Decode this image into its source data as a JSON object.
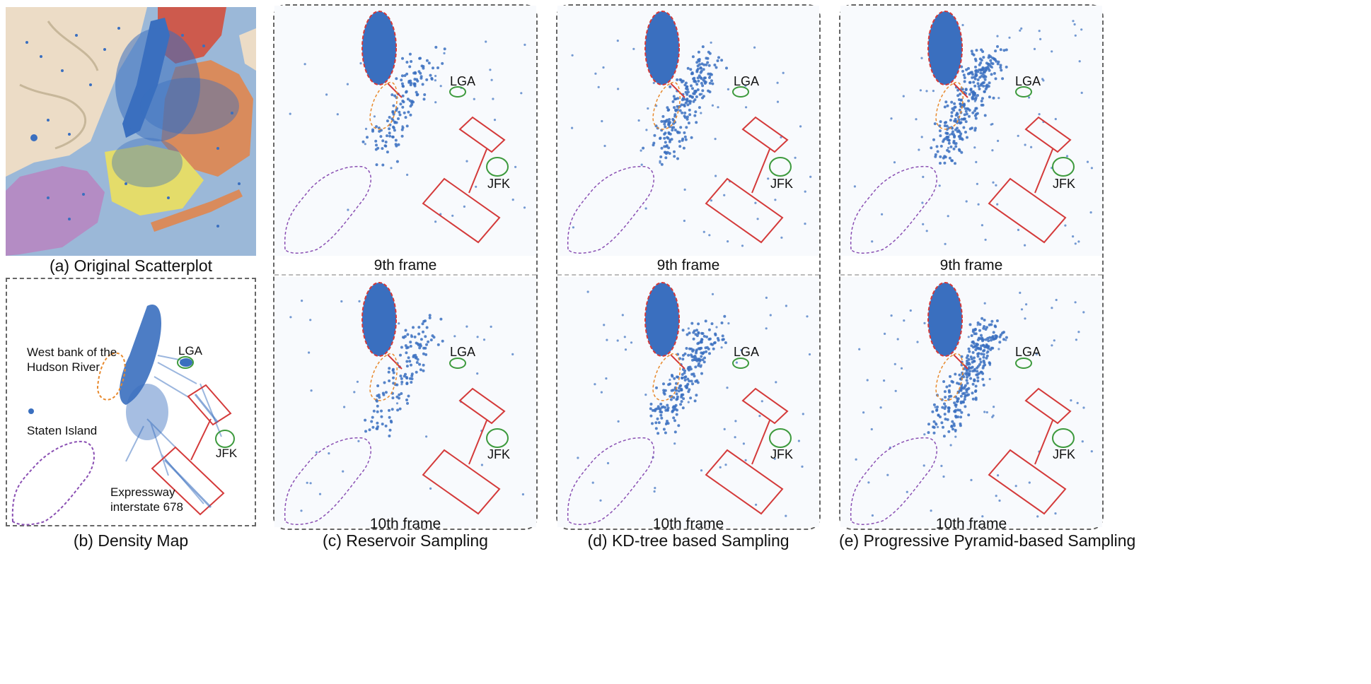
{
  "panels": {
    "a": {
      "caption": "(a) Original Scatterplot"
    },
    "b": {
      "caption": "(b) Density Map",
      "annotations": {
        "west_bank": "West bank of the\nHudson River",
        "lga": "LGA",
        "staten": "Staten Island",
        "jfk": "JFK",
        "expressway": "Expressway\ninterstate 678"
      }
    },
    "c": {
      "caption": "(c) Reservoir Sampling",
      "top_frame": "9th frame",
      "bottom_frame": "10th frame",
      "lga": "LGA",
      "jfk": "JFK"
    },
    "d": {
      "caption": "(d) KD-tree based Sampling",
      "top_frame": "9th frame",
      "bottom_frame": "10th frame",
      "lga": "LGA",
      "jfk": "JFK"
    },
    "e": {
      "caption": "(e) Progressive Pyramid-based Sampling",
      "top_frame": "9th frame",
      "bottom_frame": "10th frame",
      "lga": "LGA",
      "jfk": "JFK"
    }
  },
  "colors": {
    "point": "#3a6fbf",
    "water": "#9bb8d8",
    "land": "#ecdcc6",
    "bronx": "#cd5a4d",
    "queens": "#d98b5c",
    "brooklyn": "#e4dc6a",
    "staten": "#b48cc4",
    "zoom_box": "#d43a3a",
    "airport_circle": "#3d9a3d",
    "west_bank_outline": "#e88a2e",
    "staten_outline": "#8a4fb3"
  }
}
